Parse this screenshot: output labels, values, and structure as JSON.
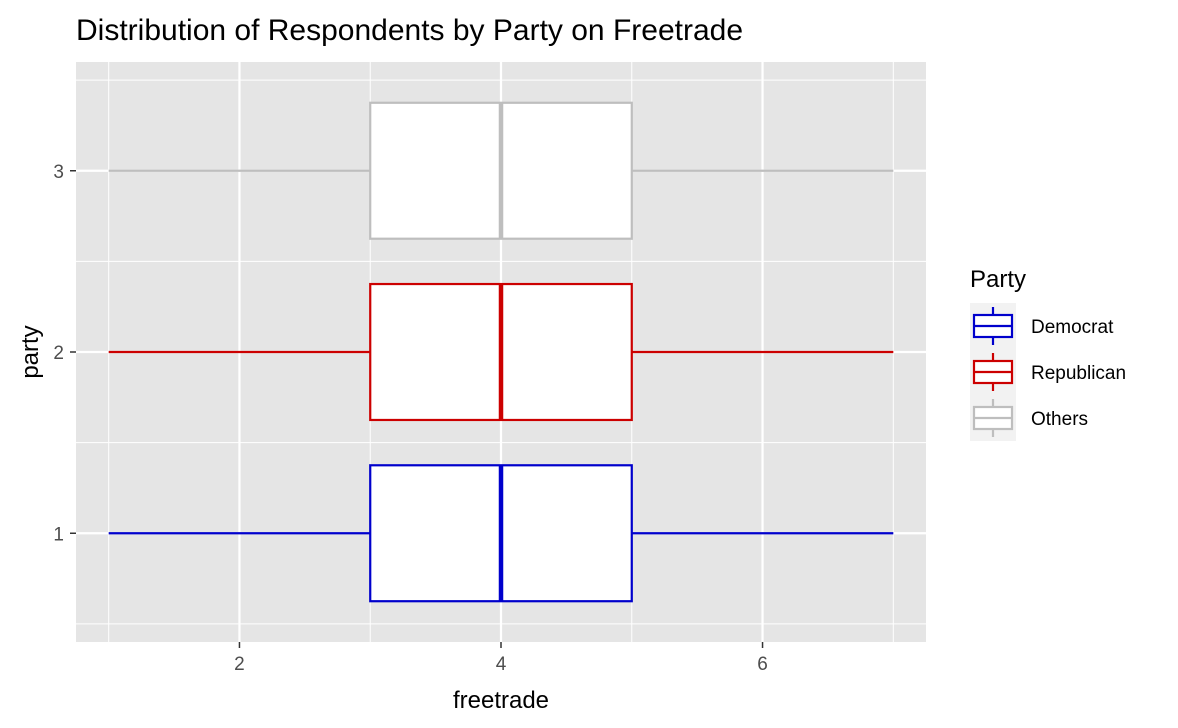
{
  "chart_data": {
    "type": "boxplot",
    "orientation": "horizontal",
    "title": "Distribution of Respondents by Party on Freetrade",
    "xlabel": "freetrade",
    "ylabel": "party",
    "xlim": [
      0.75,
      7.25
    ],
    "x_ticks": [
      2,
      4,
      6
    ],
    "y_categories": [
      "1",
      "2",
      "3"
    ],
    "grid": true,
    "panel_background": "#e5e5e5",
    "grid_color": "#ffffff",
    "legend": {
      "title": "Party",
      "position": "right",
      "entries": [
        "Democrat",
        "Republican",
        "Others"
      ]
    },
    "series": [
      {
        "name": "Democrat",
        "category": "1",
        "color": "#0000cc",
        "whisker_low": 1,
        "q1": 3,
        "median": 4,
        "q3": 5,
        "whisker_high": 7
      },
      {
        "name": "Republican",
        "category": "2",
        "color": "#cc0000",
        "whisker_low": 1,
        "q1": 3,
        "median": 4,
        "q3": 5,
        "whisker_high": 7
      },
      {
        "name": "Others",
        "category": "3",
        "color": "#bebebe",
        "whisker_low": 1,
        "q1": 3,
        "median": 4,
        "q3": 5,
        "whisker_high": 7
      }
    ]
  }
}
